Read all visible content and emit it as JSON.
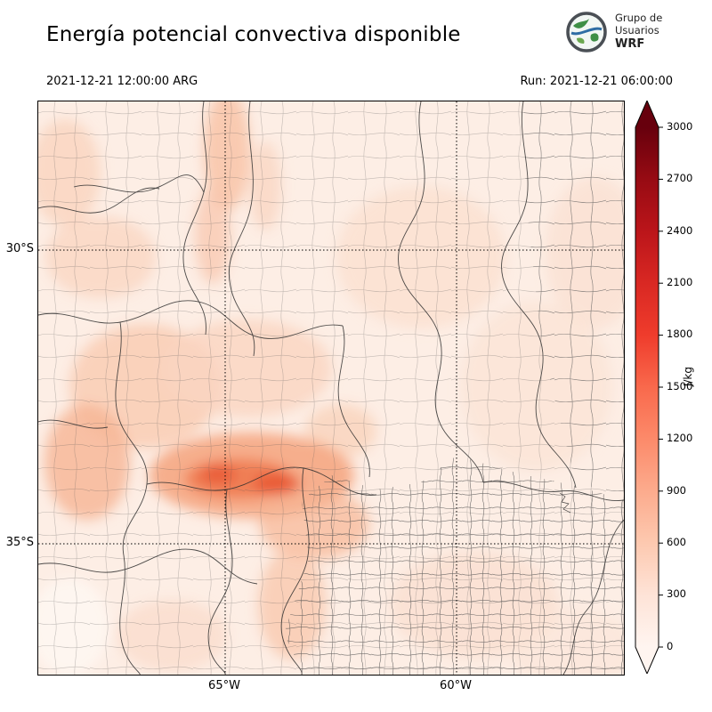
{
  "header": {
    "title": "Energía potencial convectiva disponible",
    "valid_time": "2021-12-21 12:00:00 ARG",
    "run_label": "Run: 2021-12-21 06:00:00",
    "logo": {
      "line1": "Grupo de",
      "line2": "Usuarios",
      "line3": "WRF"
    }
  },
  "map": {
    "y_ticks": [
      "30°S",
      "35°S"
    ],
    "x_ticks": [
      "65°W",
      "60°W"
    ]
  },
  "colorbar": {
    "unit": "J/kg",
    "ticks": [
      "0",
      "300",
      "600",
      "900",
      "1200",
      "1500",
      "1800",
      "2100",
      "2400",
      "2700",
      "3000"
    ],
    "colors": [
      "#fff5f0",
      "#fee3d7",
      "#fdc9b0",
      "#fcab8d",
      "#fc8a6a",
      "#f9694c",
      "#ef3c2c",
      "#d92823",
      "#bb151a",
      "#970b13",
      "#67000d"
    ]
  },
  "chart_data": {
    "type": "heatmap",
    "title": "Energía potencial convectiva disponible",
    "unit": "J/kg",
    "valid_time": "2021-12-21 12:00:00 ARG",
    "run_time": "2021-12-21 06:00:00",
    "colorbar": {
      "min": 0,
      "max": 3000,
      "step": 300,
      "tick_values": [
        0,
        300,
        600,
        900,
        1200,
        1500,
        1800,
        2100,
        2400,
        2700,
        3000
      ]
    },
    "lat_gridlines": [
      "30°S",
      "35°S"
    ],
    "lon_gridlines": [
      "65°W",
      "60°W"
    ],
    "field_summary": "Mostly low CAPE (0-600 J/kg) across the domain; maxima around 1200-1500 J/kg in an east-west band near 34.5°S between ~66°W and ~64°W, with moderate values (600-900) along the northwest and a weak band near 65°W at the top edge"
  }
}
